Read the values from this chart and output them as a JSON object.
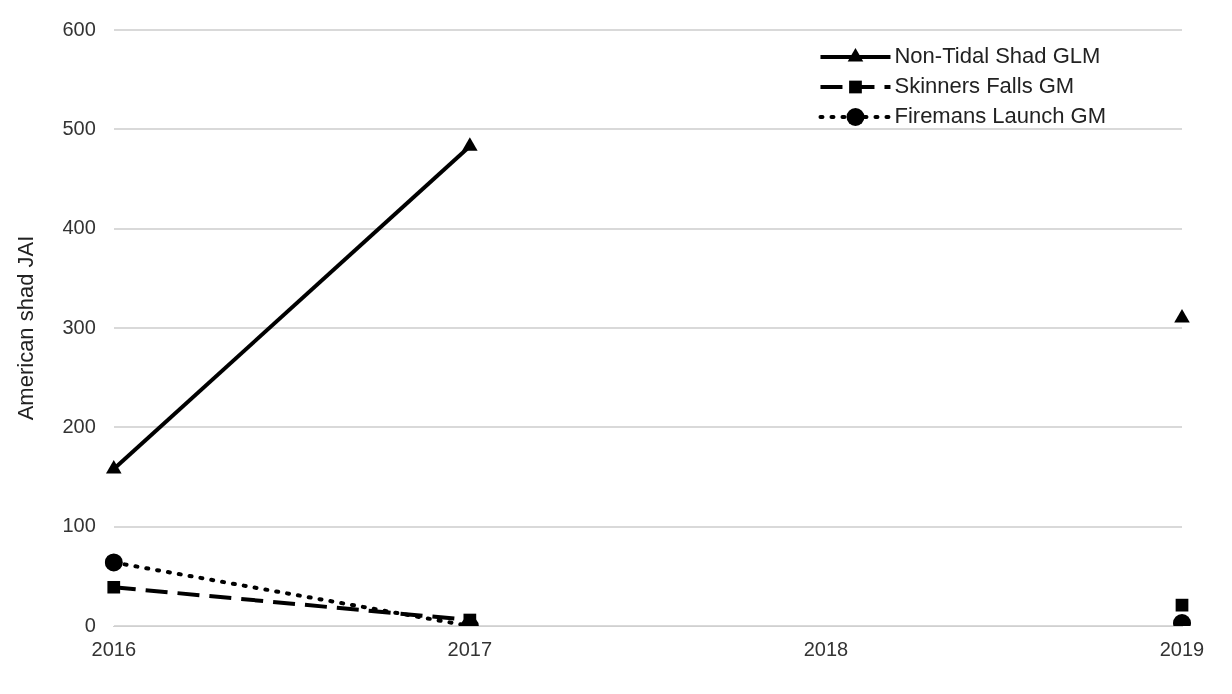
{
  "chart_data": {
    "type": "line",
    "ylabel": "American shad JAI",
    "categories": [
      "2016",
      "2017",
      "2018",
      "2019"
    ],
    "series": [
      {
        "name": "Non-Tidal Shad GLM",
        "color": "#000000",
        "marker": "triangle",
        "line_style": "solid",
        "values": [
          158,
          483,
          null,
          310
        ]
      },
      {
        "name": "Skinners Falls GM",
        "color": "#000000",
        "marker": "square",
        "line_style": "dashed",
        "values": [
          39,
          6,
          null,
          21
        ]
      },
      {
        "name": "Firemans Launch GM",
        "color": "#000000",
        "marker": "circle",
        "line_style": "dotted",
        "values": [
          64,
          0,
          null,
          3
        ]
      }
    ],
    "ylim": [
      0,
      600
    ],
    "yticks": [
      0,
      100,
      200,
      300,
      400,
      500,
      600
    ],
    "grid": "y",
    "legend": "top right"
  }
}
